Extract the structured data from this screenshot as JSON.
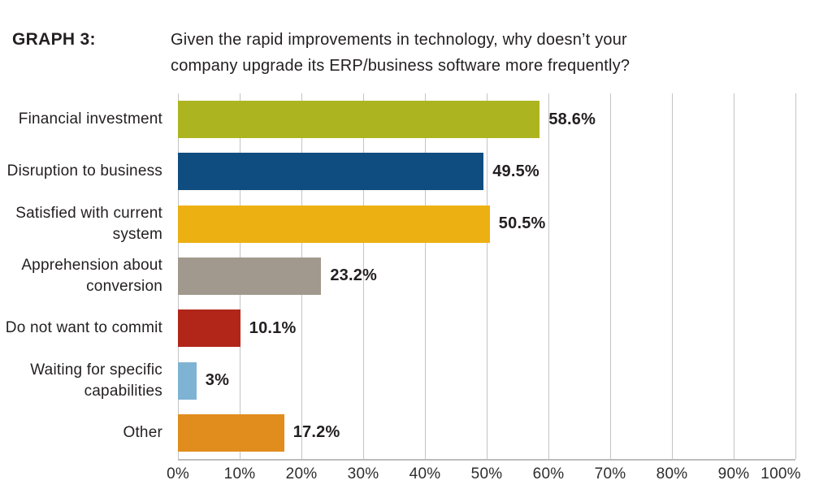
{
  "header": {
    "label": "GRAPH 3:",
    "question_line1": "Given the rapid improvements in technology, why doesn’t your",
    "question_line2": "company upgrade its ERP/business software more frequently?"
  },
  "chart_data": {
    "type": "bar",
    "orientation": "horizontal",
    "title": "Given the rapid improvements in technology, why doesn’t your company upgrade its ERP/business software more frequently?",
    "categories": [
      "Financial investment",
      "Disruption to business",
      "Satisfied with current system",
      "Apprehension about conversion",
      "Do not want to commit",
      "Waiting for specific capabilities",
      "Other"
    ],
    "values": [
      58.6,
      49.5,
      50.5,
      23.2,
      10.1,
      3,
      17.2
    ],
    "value_labels": [
      "58.6%",
      "49.5%",
      "50.5%",
      "23.2%",
      "10.1%",
      "3%",
      "17.2%"
    ],
    "bar_colors": [
      "#acb520",
      "#0f4d80",
      "#edb013",
      "#a1998d",
      "#b2261a",
      "#7fb3d3",
      "#e18d1e"
    ],
    "xlabel": "",
    "ylabel": "",
    "xlim": [
      0,
      100
    ],
    "x_ticks": [
      "0%",
      "10%",
      "20%",
      "30%",
      "40%",
      "50%",
      "60%",
      "70%",
      "80%",
      "90%",
      "100%"
    ],
    "grid": true,
    "legend": false,
    "gridline_color": "#c4c4c4",
    "axis_color": "#bdbdbd",
    "text_color": "#231f20"
  }
}
